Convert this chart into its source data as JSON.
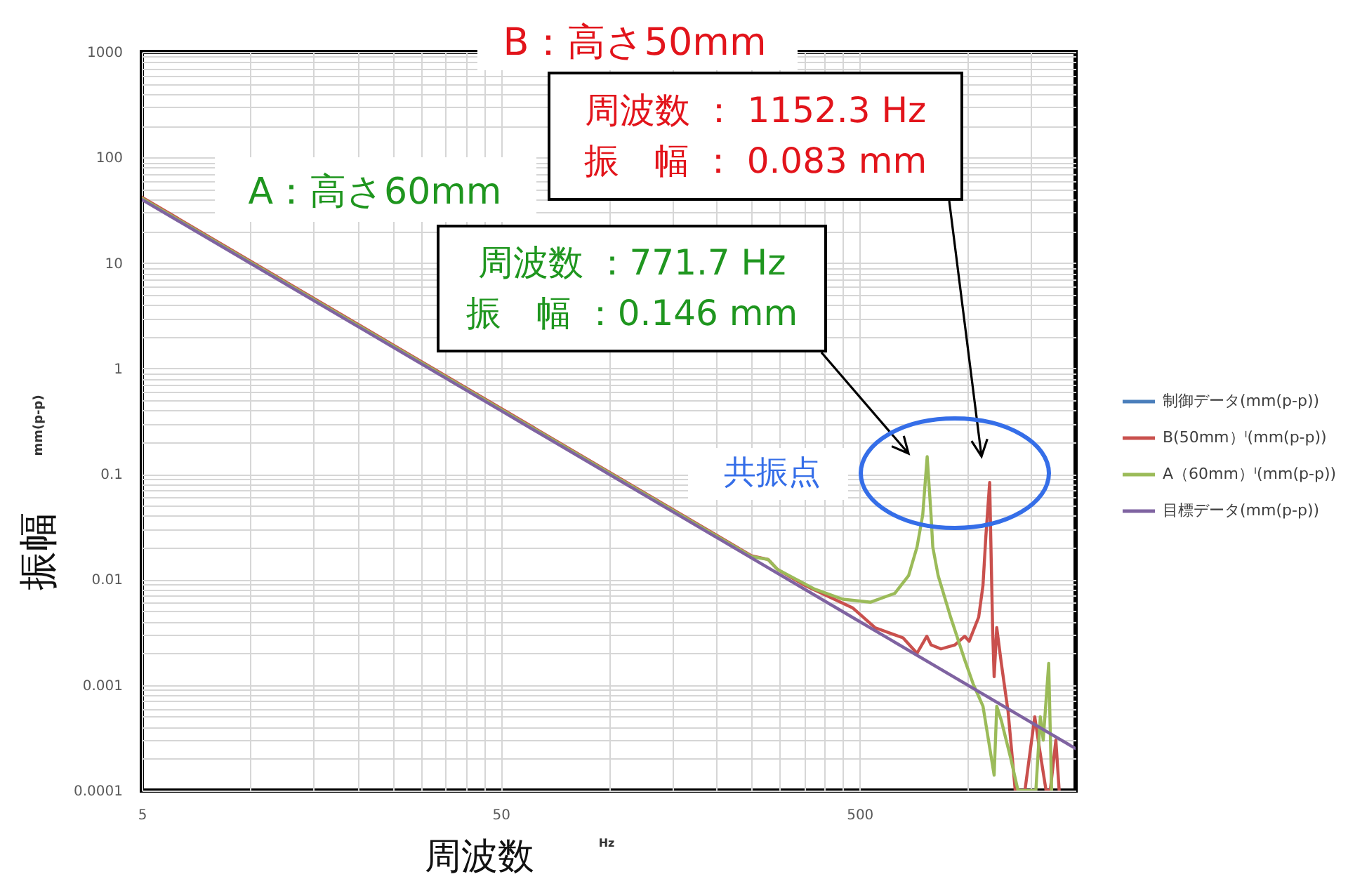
{
  "chart_data": {
    "type": "line",
    "xlabel": "周波数",
    "ylabel": "振幅",
    "log": "xy",
    "grid": true,
    "legend": "right",
    "xlim": [
      5,
      2000
    ],
    "ylim": [
      0.0001,
      1000
    ],
    "xticks": [
      5,
      {
        "value": 10,
        "label": null
      },
      {
        "value": 15,
        "label": null
      },
      {
        "value": 20,
        "label": null
      },
      {
        "value": 25,
        "label": null
      },
      {
        "value": 30,
        "label": null
      },
      {
        "value": 35,
        "label": null
      },
      {
        "value": 40,
        "label": null
      },
      {
        "value": 45,
        "label": null
      },
      50,
      {
        "value": 100,
        "label": null
      },
      {
        "value": 150,
        "label": null
      },
      {
        "value": 200,
        "label": null
      },
      {
        "value": 250,
        "label": null
      },
      {
        "value": 300,
        "label": null
      },
      {
        "value": 350,
        "label": null
      },
      {
        "value": 400,
        "label": null
      },
      {
        "value": 450,
        "label": null
      },
      500,
      {
        "value": 1000,
        "label": null
      },
      {
        "value": 1500,
        "label": null
      }
    ],
    "yticks": [
      0.0001,
      {
        "value": 0.0002,
        "label": null
      },
      {
        "value": 0.0003,
        "label": null
      },
      {
        "value": 0.0004,
        "label": null
      },
      {
        "value": 0.0005,
        "label": null
      },
      {
        "value": 0.0006,
        "label": null
      },
      {
        "value": 0.0007,
        "label": null
      },
      {
        "value": 0.0008,
        "label": null
      },
      {
        "value": 0.0009,
        "label": null
      },
      0.001,
      {
        "value": 0.002,
        "label": null
      },
      {
        "value": 0.003,
        "label": null
      },
      {
        "value": 0.004,
        "label": null
      },
      {
        "value": 0.005,
        "label": null
      },
      {
        "value": 0.006,
        "label": null
      },
      {
        "value": 0.007,
        "label": null
      },
      {
        "value": 0.008,
        "label": null
      },
      {
        "value": 0.009,
        "label": null
      },
      0.01,
      {
        "value": 0.02,
        "label": null
      },
      {
        "value": 0.03,
        "label": null
      },
      {
        "value": 0.04,
        "label": null
      },
      {
        "value": 0.05,
        "label": null
      },
      {
        "value": 0.06,
        "label": null
      },
      {
        "value": 0.07,
        "label": null
      },
      {
        "value": 0.08,
        "label": null
      },
      {
        "value": 0.09,
        "label": null
      },
      0.1,
      {
        "value": 0.2,
        "label": null
      },
      {
        "value": 0.3,
        "label": null
      },
      {
        "value": 0.4,
        "label": null
      },
      {
        "value": 0.5,
        "label": null
      },
      {
        "value": 0.6,
        "label": null
      },
      {
        "value": 0.7,
        "label": null
      },
      {
        "value": 0.8,
        "label": null
      },
      {
        "value": 0.9,
        "label": null
      },
      1,
      {
        "value": 2,
        "label": null
      },
      {
        "value": 3,
        "label": null
      },
      {
        "value": 4,
        "label": null
      },
      {
        "value": 5,
        "label": null
      },
      {
        "value": 6,
        "label": null
      },
      {
        "value": 7,
        "label": null
      },
      {
        "value": 8,
        "label": null
      },
      {
        "value": 9,
        "label": null
      },
      10,
      {
        "value": 20,
        "label": null
      },
      {
        "value": 30,
        "label": null
      },
      {
        "value": 40,
        "label": null
      },
      {
        "value": 50,
        "label": null
      },
      {
        "value": 60,
        "label": null
      },
      {
        "value": 70,
        "label": null
      },
      {
        "value": 80,
        "label": null
      },
      {
        "value": 90,
        "label": null
      },
      100,
      {
        "value": 200,
        "label": null
      },
      {
        "value": 300,
        "label": null
      },
      {
        "value": 400,
        "label": null
      },
      {
        "value": 500,
        "label": null
      },
      {
        "value": 600,
        "label": null
      },
      {
        "value": 700,
        "label": null
      },
      {
        "value": 800,
        "label": null
      },
      {
        "value": 900,
        "label": null
      },
      1000
    ],
    "x": [
      5,
      50,
      500,
      2000
    ],
    "series": [
      {
        "name": "制御データ(mm(p-p))",
        "color": "#4a7ebb",
        "values": [
          null,
          null,
          null,
          null
        ]
      },
      {
        "name": "B(50mm）ᴵ(mm(p-p))",
        "color": "#c9504d",
        "x": [
          5,
          250,
          278,
          295,
          352,
          478,
          552,
          661,
          723,
          770,
          791,
          843,
          922,
          982,
          1010,
          1074,
          1104,
          1124,
          1152.3,
          1164,
          1175,
          1186,
          1206,
          1242,
          1297,
          1358,
          1445,
          1539,
          1586,
          1655,
          1700,
          1762,
          1800
        ],
        "values": [
          42,
          0.0168,
          0.0155,
          0.0125,
          0.0088,
          0.0054,
          0.0035,
          0.0028,
          0.002,
          0.0029,
          0.0024,
          0.0022,
          0.0024,
          0.0029,
          0.0026,
          0.0044,
          0.0088,
          0.025,
          0.083,
          0.015,
          0.0032,
          0.0012,
          0.0035,
          0.0016,
          0.00056,
          0.0001,
          0.0001,
          0.0005,
          0.00025,
          0.0001,
          0.0001,
          0.0003,
          0.0001
        ]
      },
      {
        "name": "A（60mm）ᴵ(mm(p-p))",
        "color": "#9bbb59",
        "x": [
          5,
          250,
          278,
          295,
          375,
          449,
          537,
          627,
          685,
          723,
          750,
          771.7,
          791,
          800,
          828,
          897,
          982,
          1036,
          1104,
          1186,
          1206,
          1242,
          1320,
          1382,
          1550,
          1595,
          1625,
          1683,
          1715
        ],
        "values": [
          41,
          0.0165,
          0.0155,
          0.0125,
          0.0081,
          0.0065,
          0.0061,
          0.0074,
          0.0109,
          0.0203,
          0.041,
          0.146,
          0.041,
          0.0203,
          0.0109,
          0.0044,
          0.00173,
          0.00103,
          0.00063,
          0.00014,
          0.00063,
          0.00046,
          0.0002,
          0.0001,
          0.0001,
          0.0005,
          0.0003,
          0.0016,
          0.0001
        ]
      },
      {
        "name": "目標データ(mm(p-p))",
        "color": "#7f63a1",
        "values": [
          40,
          0.4,
          0.004,
          0.00025
        ]
      }
    ],
    "annotations": [
      "B：高さ50mm",
      "A：高さ60mm",
      "周波数 ：771.7 Hz\n振　幅 ：0.146 mm",
      "周波数 ： 1152.3 Hz\n振　幅 ： 0.083 mm",
      "共振点",
      "mm(p-p)",
      "Hz"
    ]
  }
}
